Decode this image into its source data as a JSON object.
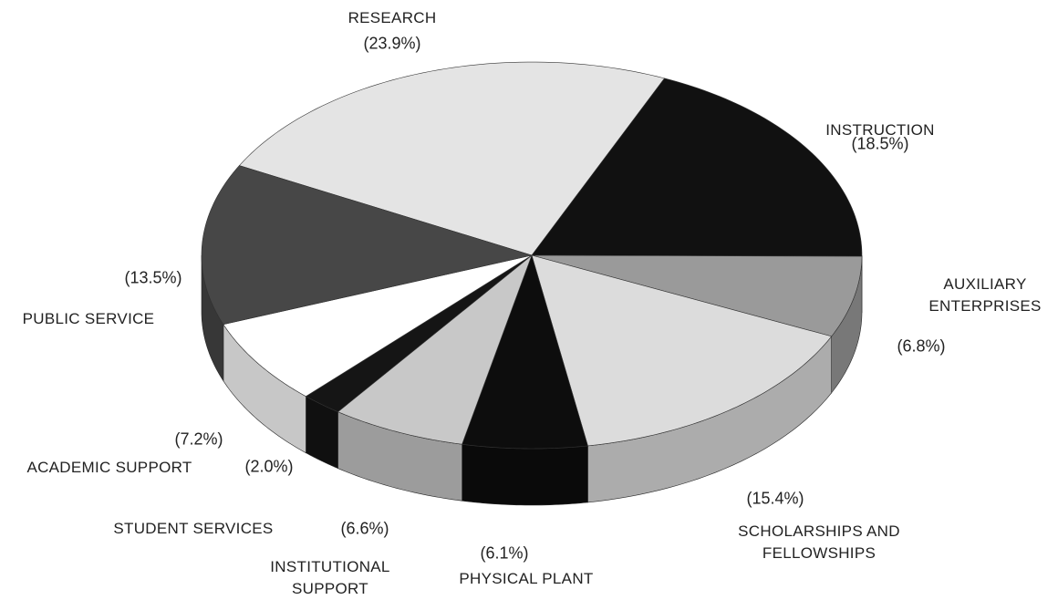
{
  "chart_data": {
    "type": "pie",
    "categories": [
      "RESEARCH",
      "INSTRUCTION",
      "AUXILIARY ENTERPRISES",
      "SCHOLARSHIPS AND FELLOWSHIPS",
      "PHYSICAL PLANT",
      "INSTITUTIONAL SUPPORT",
      "STUDENT SERVICES",
      "ACADEMIC SUPPORT",
      "PUBLIC SERVICE"
    ],
    "values": [
      23.9,
      18.5,
      6.8,
      15.4,
      6.1,
      6.6,
      2.0,
      7.2,
      13.5
    ],
    "value_labels": [
      "(23.9%)",
      "(18.5%)",
      "(6.8%)",
      "(15.4%)",
      "(6.1%)",
      "(6.6%)",
      "(2.0%)",
      "(7.2%)",
      "(13.5%)"
    ],
    "colors": [
      "#e4e4e4",
      "#111111",
      "#9a9a9a",
      "#dcdcdc",
      "#0d0d0d",
      "#c8c8c8",
      "#151515",
      "#ffffff",
      "#474747"
    ]
  }
}
